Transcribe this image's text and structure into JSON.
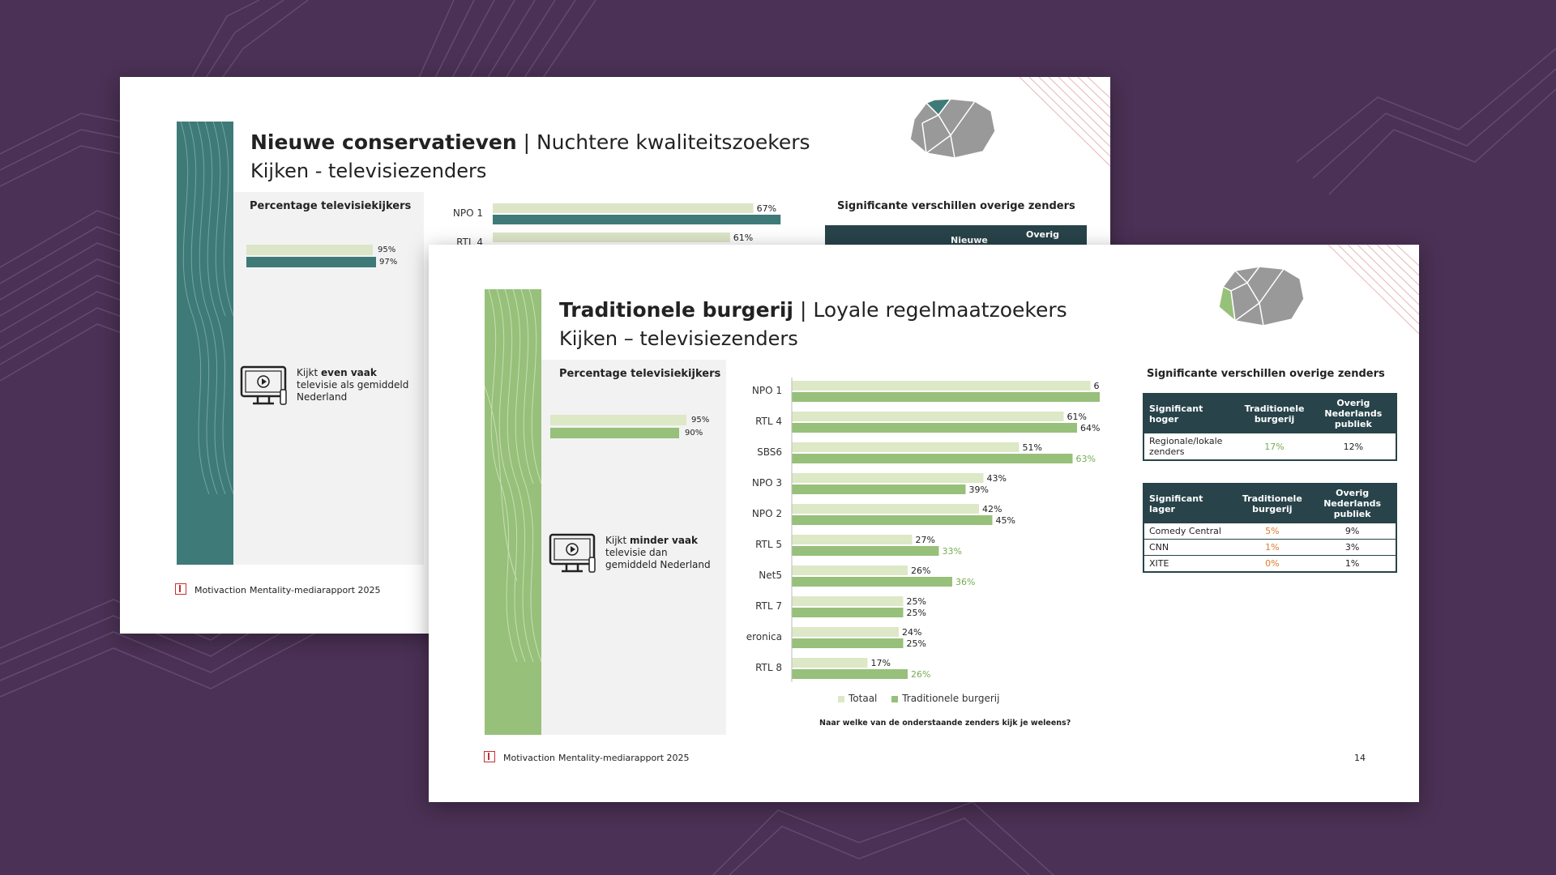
{
  "colors": {
    "background": "#4b3155",
    "teal": "#3e7a78",
    "teal_light": "#dde5c8",
    "green": "#97c07a",
    "green_light": "#dde8c6",
    "table_dark": "#28434a",
    "higher_value": "#74ac50",
    "lower_value": "#e07a2f",
    "logo_red": "#c62f2f"
  },
  "back_slide": {
    "title_bold": "Nieuwe conservatieven",
    "title_sep": " | ",
    "title_rest": "Nuchtere kwaliteitszoekers",
    "subtitle": "Kijken - televisiezenders",
    "box_title": "Percentage televisiekijkers",
    "total_pct_label": "95%",
    "group_pct_label": "97%",
    "caption_pre": "Kijkt ",
    "caption_bold": "even vaak",
    "caption_post": " televisie als gemiddeld Nederland",
    "sig_title": "Significante verschillen overige zenders",
    "table_col1": "Nieuwe",
    "table_col2": "Overig",
    "footer_brand": "Motivaction",
    "footer_report": "Mentality-mediarapport 2025",
    "tv_icon": "tv-play-icon",
    "chart_data": {
      "type": "bar",
      "categories": [
        "NPO 1",
        "RTL 4"
      ],
      "series": [
        {
          "name": "Totaal",
          "values": [
            67,
            61
          ]
        },
        {
          "name": "Nieuwe conservatieven",
          "values": [
            74,
            null
          ]
        }
      ],
      "value_labels": [
        [
          "67%",
          "61%"
        ],
        [
          "74%",
          ""
        ]
      ]
    }
  },
  "front_slide": {
    "title_bold": "Traditionele burgerij",
    "title_sep": " | ",
    "title_rest": "Loyale regelmaatzoekers",
    "subtitle": "Kijken – televisiezenders",
    "box_title": "Percentage televisiekijkers",
    "total_pct_label": "95%",
    "group_pct_label": "90%",
    "caption_pre": "Kijkt ",
    "caption_bold": "minder vaak",
    "caption_post": " televisie dan gemiddeld Nederland",
    "sig_title": "Significante verschillen overige zenders",
    "tv_icon": "tv-play-icon",
    "question": "Naar welke van de onderstaande zenders kijk je weleens?",
    "footer_brand": "Motivaction",
    "footer_report": "Mentality-mediarapport 2025",
    "page_number": "14",
    "legend": [
      "Totaal",
      "Traditionele burgerij"
    ],
    "table_higher": {
      "header": [
        "Significant hoger",
        "Traditionele burgerij",
        "Overig Nederlands publiek"
      ],
      "rows": [
        [
          "Regionale/lokale zenders",
          "17%",
          "12%"
        ]
      ]
    },
    "table_lower": {
      "header": [
        "Significant lager",
        "Traditionele burgerij",
        "Overig Nederlands publiek"
      ],
      "rows": [
        [
          "Comedy Central",
          "5%",
          "9%"
        ],
        [
          "CNN",
          "1%",
          "3%"
        ],
        [
          "XITE",
          "0%",
          "1%"
        ]
      ]
    },
    "chart_data": {
      "type": "bar",
      "orientation": "horizontal",
      "categories": [
        "NPO 1",
        "RTL 4",
        "SBS6",
        "NPO 3",
        "NPO 2",
        "RTL 5",
        "Net5",
        "RTL 7",
        "eronica",
        "RTL 8"
      ],
      "series": [
        {
          "name": "Totaal",
          "values": [
            67,
            61,
            51,
            43,
            42,
            27,
            26,
            25,
            24,
            17
          ]
        },
        {
          "name": "Traditionele burgerij",
          "values": [
            73,
            64,
            63,
            39,
            45,
            33,
            36,
            25,
            25,
            26
          ]
        }
      ],
      "value_labels": {
        "Totaal": [
          "67%",
          "61%",
          "51%",
          "43%",
          "42%",
          "27%",
          "26%",
          "25%",
          "24%",
          "17%"
        ],
        "Traditionele burgerij": [
          "73%",
          "64%",
          "63%",
          "39%",
          "45%",
          "33%",
          "36%",
          "25%",
          "25%",
          "26%"
        ]
      },
      "significantly_higher": [
        true,
        false,
        true,
        false,
        false,
        true,
        true,
        false,
        false,
        true
      ],
      "xlim": [
        0,
        100
      ],
      "legend_position": "bottom"
    }
  }
}
